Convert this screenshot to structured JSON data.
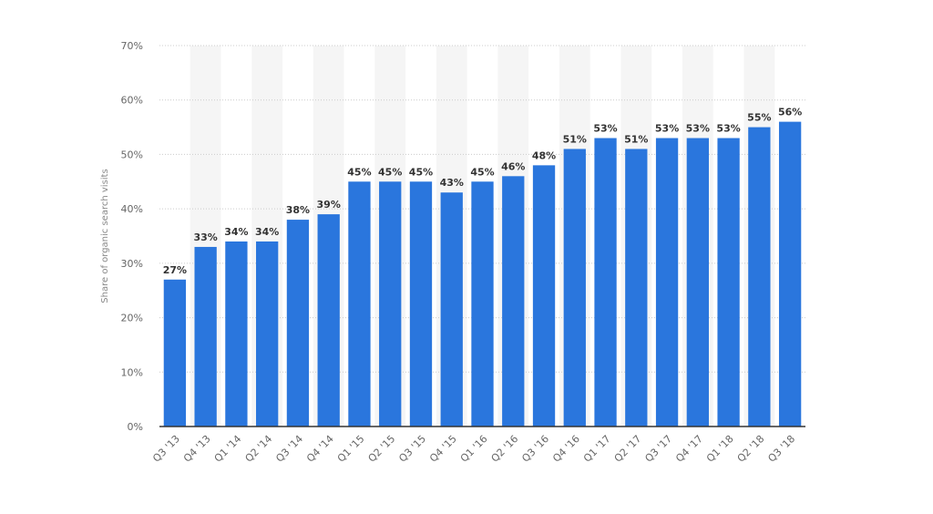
{
  "chart_data": {
    "type": "bar",
    "categories": [
      "Q3 '13",
      "Q4 '13",
      "Q1 '14",
      "Q2 '14",
      "Q3 '14",
      "Q4 '14",
      "Q1 '15",
      "Q2 '15",
      "Q3 '15",
      "Q4 '15",
      "Q1 '16",
      "Q2 '16",
      "Q3 '16",
      "Q4 '16",
      "Q1 '17",
      "Q2 '17",
      "Q3 '17",
      "Q4 '17",
      "Q1 '18",
      "Q2 '18",
      "Q3 '18"
    ],
    "values": [
      27,
      33,
      34,
      34,
      38,
      39,
      45,
      45,
      45,
      43,
      45,
      46,
      48,
      51,
      53,
      51,
      53,
      53,
      53,
      55,
      56
    ],
    "value_labels": [
      "27%",
      "33%",
      "34%",
      "34%",
      "38%",
      "39%",
      "45%",
      "45%",
      "45%",
      "43%",
      "45%",
      "46%",
      "48%",
      "51%",
      "53%",
      "51%",
      "53%",
      "53%",
      "53%",
      "55%",
      "56%"
    ],
    "yticks": [
      0,
      10,
      20,
      30,
      40,
      50,
      60,
      70
    ],
    "ytick_labels": [
      "0%",
      "10%",
      "20%",
      "30%",
      "40%",
      "50%",
      "60%",
      "70%"
    ],
    "ylim": [
      0,
      70
    ],
    "xlabel": "",
    "ylabel": "Share of organic search visits",
    "title": "",
    "grid": true,
    "bar_color": "#2a76dd",
    "band_color": "#f5f5f5"
  }
}
